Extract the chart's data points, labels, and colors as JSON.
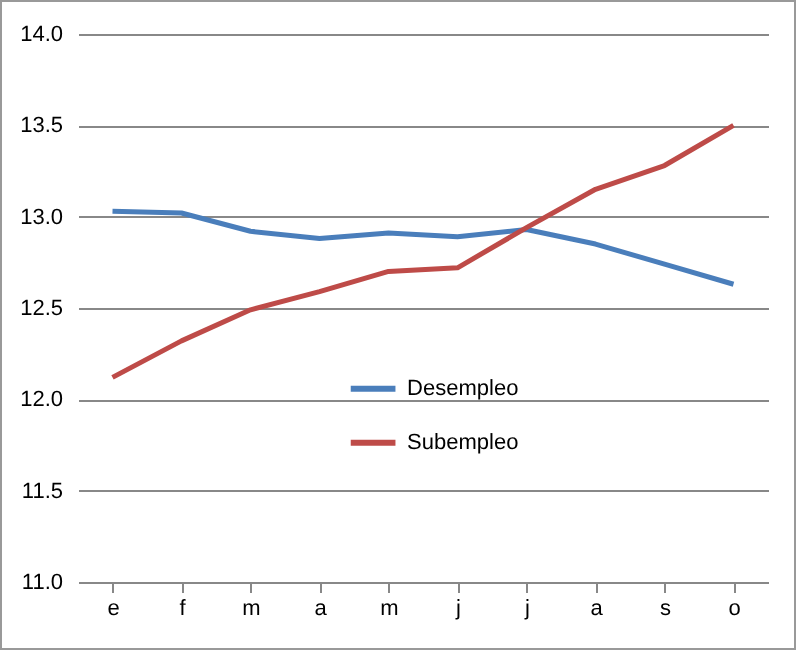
{
  "chart_data": {
    "type": "line",
    "categories": [
      "e",
      "f",
      "m",
      "a",
      "m",
      "j",
      "j",
      "a",
      "s",
      "o"
    ],
    "series": [
      {
        "name": "Desempleo",
        "color": "#4a7ebb",
        "values": [
          13.03,
          13.02,
          12.92,
          12.88,
          12.91,
          12.89,
          12.93,
          12.85,
          12.74,
          12.63
        ]
      },
      {
        "name": "Subempleo",
        "color": "#be4b48",
        "values": [
          12.12,
          12.32,
          12.49,
          12.59,
          12.7,
          12.72,
          12.94,
          13.15,
          13.28,
          13.5
        ]
      }
    ],
    "ylim": [
      11,
      14
    ],
    "yticks": [
      {
        "value": 11,
        "label": "11.0"
      },
      {
        "value": 11.5,
        "label": "11.5"
      },
      {
        "value": 12,
        "label": "12.0"
      },
      {
        "value": 12.5,
        "label": "12.5"
      },
      {
        "value": 13,
        "label": "13.0"
      },
      {
        "value": 13.5,
        "label": "13.5"
      },
      {
        "value": 14,
        "label": "14.0"
      }
    ],
    "grid": "y",
    "legend": "center",
    "marker": "none",
    "line_style": "solid"
  }
}
